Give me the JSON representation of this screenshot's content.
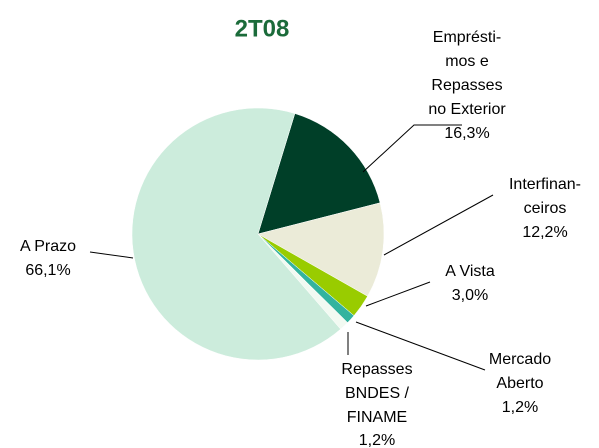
{
  "chart_data": {
    "type": "pie",
    "title": "2T08",
    "categories": [
      [
        "Emprésti-",
        "mos e",
        "Repasses",
        "no Exterior"
      ],
      [
        "Interfinan-",
        "ceiros"
      ],
      [
        "A Vista"
      ],
      [
        "Mercado",
        "Aberto"
      ],
      [
        "Repasses",
        "BNDES /",
        "FINAME"
      ],
      [
        "A Prazo"
      ]
    ],
    "values": [
      16.3,
      12.2,
      3.0,
      1.2,
      1.2,
      66.1
    ],
    "value_labels": [
      "16,3%",
      "12,2%",
      "3,0%",
      "1,2%",
      "1,2%",
      "66,1%"
    ],
    "colors": [
      "#003f28",
      "#ebebd8",
      "#99cc00",
      "#33b39f",
      "#f2faf2",
      "#ccecdc"
    ]
  }
}
